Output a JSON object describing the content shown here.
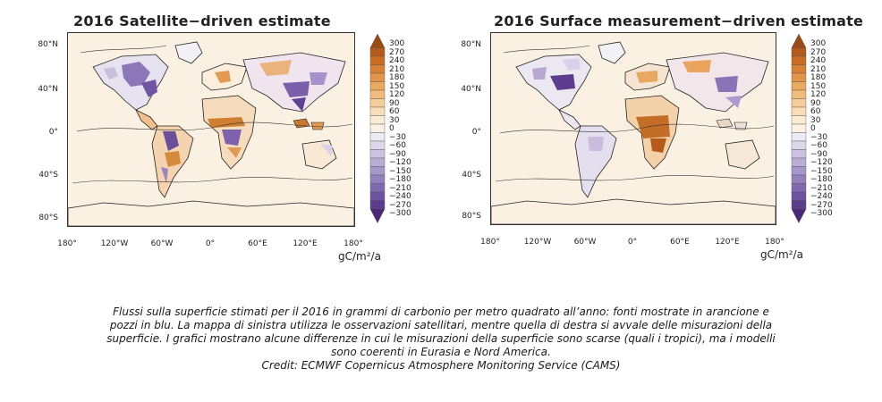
{
  "panels": [
    {
      "title": "2016 Satellite−driven estimate",
      "lat_labels": [
        "80°N",
        "40°N",
        "0°",
        "40°S",
        "80°S"
      ],
      "lon_labels": [
        "180°",
        "120°W",
        "60°W",
        "0°",
        "60°E",
        "120°E",
        "180°"
      ],
      "unit": "gC/m²/a"
    },
    {
      "title": "2016 Surface measurement−driven estimate",
      "lat_labels": [
        "80°N",
        "40°N",
        "0°",
        "40°S",
        "80°S"
      ],
      "lon_labels": [
        "180°",
        "120°W",
        "60°W",
        "0°",
        "60°E",
        "120°E",
        "180°"
      ],
      "unit": "gC/m²/a"
    }
  ],
  "colorbar": {
    "labels": [
      "300",
      "270",
      "240",
      "210",
      "180",
      "150",
      "120",
      "90",
      "60",
      "30",
      "0",
      "−30",
      "−60",
      "−90",
      "−120",
      "−150",
      "−180",
      "−210",
      "−240",
      "−270",
      "−300"
    ],
    "colors": [
      "#9a4a14",
      "#b55a1a",
      "#c96d24",
      "#d88034",
      "#e39448",
      "#eba85f",
      "#f1bb7b",
      "#f5cd99",
      "#f8ddb7",
      "#fbebd3",
      "#fbf1e3",
      "#eceaf2",
      "#dcd7ea",
      "#cbc3e1",
      "#b9add6",
      "#a697ca",
      "#9381bd",
      "#806aaf",
      "#6d539f",
      "#5b3c8d",
      "#4a287a"
    ]
  },
  "caption": {
    "line1": "Flussi sulla superficie stimati per il 2016 in grammi di carbonio per metro quadrato all’anno: fonti mostrate in arancione e",
    "line2": "pozzi in blu. La mappa di sinistra utilizza le osservazioni satellitari, mentre quella di destra si avvale delle misurazioni della",
    "line3": "superficie. I grafici mostrano alcune differenze in cui le misurazioni della superficie sono scarse (quali i tropici), ma i modelli",
    "line4": "sono coerenti in Eurasia e Nord America.",
    "credit": "Credit: ECMWF Copernicus Atmosphere Monitoring Service (CAMS)"
  }
}
